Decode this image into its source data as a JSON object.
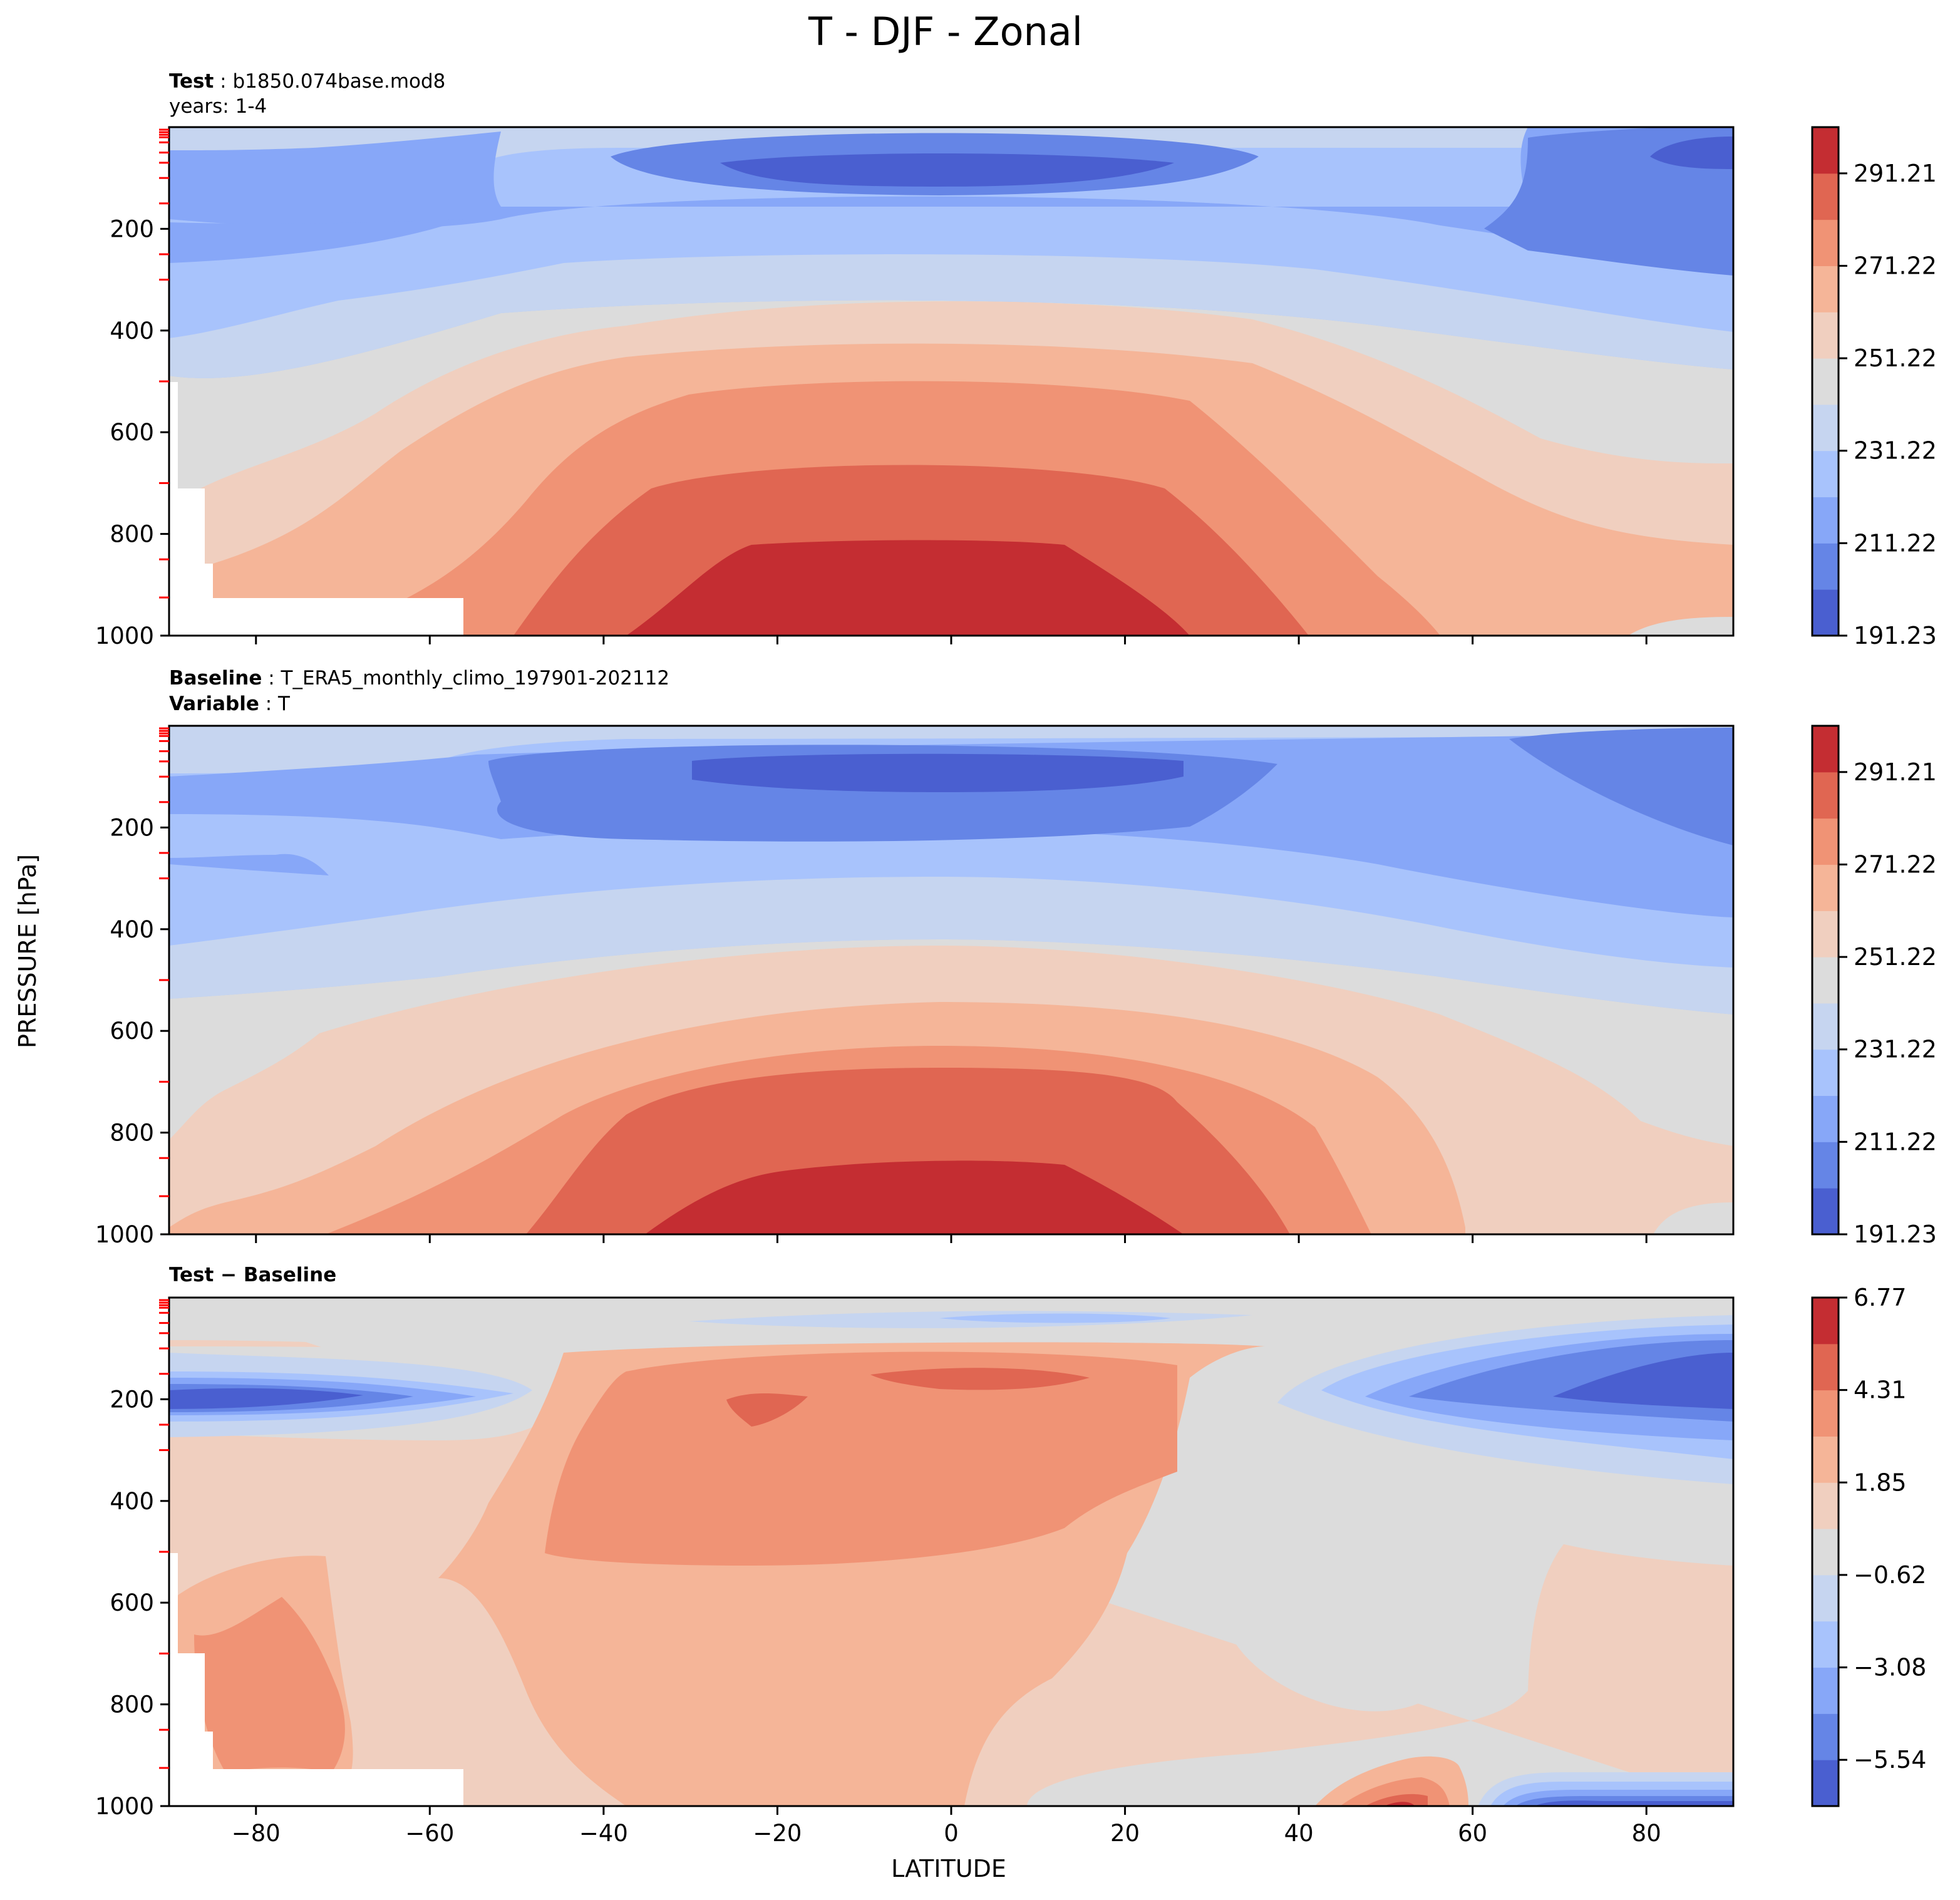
{
  "figure": {
    "title": "T - DJF - Zonal",
    "xlabel": "LATITUDE",
    "ylabel": "PRESSURE [hPa]"
  },
  "chart_data": [
    {
      "type": "heatmap",
      "panel": "test",
      "header_lines": [
        {
          "bold": "Test",
          "sep": " : ",
          "text": "b1850.074base.mod8"
        },
        {
          "bold": "",
          "sep": "",
          "text": "years: 1-4"
        }
      ],
      "x_range": [
        -90,
        90
      ],
      "y_range": [
        1000,
        0
      ],
      "x_ticks": [
        -80,
        -60,
        -40,
        -20,
        0,
        20,
        40,
        60,
        80
      ],
      "y_ticks": [
        200,
        400,
        600,
        800,
        1000
      ],
      "colorbar_ticks": [
        "291.21",
        "271.22",
        "251.22",
        "231.22",
        "211.22",
        "191.23"
      ],
      "colorbar_range": [
        191.23,
        301.21
      ],
      "masked_lower_left": true
    },
    {
      "type": "heatmap",
      "panel": "baseline",
      "header_lines": [
        {
          "bold": "Baseline",
          "sep": " : ",
          "text": "T_ERA5_monthly_climo_197901-202112"
        },
        {
          "bold": "Variable",
          "sep": " : ",
          "text": "T"
        }
      ],
      "x_range": [
        -90,
        90
      ],
      "y_range": [
        1000,
        0
      ],
      "x_ticks": [
        -80,
        -60,
        -40,
        -20,
        0,
        20,
        40,
        60,
        80
      ],
      "y_ticks": [
        200,
        400,
        600,
        800,
        1000
      ],
      "colorbar_ticks": [
        "291.21",
        "271.22",
        "251.22",
        "231.22",
        "211.22",
        "191.23"
      ],
      "colorbar_range": [
        191.23,
        301.21
      ],
      "masked_lower_left": false
    },
    {
      "type": "heatmap",
      "panel": "diff",
      "header_lines": [
        {
          "bold": "Test − Baseline",
          "sep": "",
          "text": ""
        }
      ],
      "x_range": [
        -90,
        90
      ],
      "y_range": [
        1000,
        0
      ],
      "x_ticks": [
        -80,
        -60,
        -40,
        -20,
        0,
        20,
        40,
        60,
        80
      ],
      "x_tick_labels": [
        "−80",
        "−60",
        "−40",
        "−20",
        "0",
        "20",
        "40",
        "60",
        "80"
      ],
      "y_ticks": [
        200,
        400,
        600,
        800,
        1000
      ],
      "colorbar_ticks": [
        "6.77",
        "4.31",
        "1.85",
        "−0.62",
        "−3.08",
        "−5.54"
      ],
      "colorbar_range": [
        -6.77,
        6.77
      ],
      "masked_lower_left": true
    }
  ],
  "colors": {
    "levels": [
      "#4a5fd0",
      "#6585e6",
      "#87a7f8",
      "#a8c3fc",
      "#c6d5f0",
      "#dcdcdc",
      "#f0cfbf",
      "#f5b598",
      "#f09375",
      "#e06652",
      "#c42d32"
    ],
    "mask": "#ffffff",
    "tick_minor_red": "#ff0000"
  }
}
